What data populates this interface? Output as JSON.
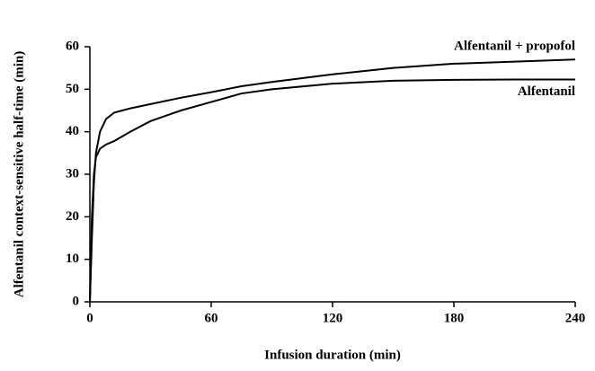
{
  "chart_data": {
    "type": "line",
    "x_label": "Infusion duration (min)",
    "y_label": "Alfentanil context-sensitive half-time (min)",
    "x": [
      0,
      1,
      2,
      3,
      5,
      8,
      12,
      20,
      30,
      45,
      60,
      75,
      90,
      120,
      150,
      180,
      210,
      240
    ],
    "series": [
      {
        "name": "Alfentanil + propofol",
        "color": "#000000",
        "values": [
          0,
          15,
          28,
          35,
          40,
          43,
          44.5,
          45.5,
          46.5,
          48,
          49.3,
          50.7,
          51.7,
          53.5,
          55,
          56,
          56.5,
          57
        ]
      },
      {
        "name": "Alfentanil",
        "color": "#000000",
        "values": [
          0,
          20,
          30,
          34,
          36,
          37,
          37.8,
          40,
          42.5,
          45,
          47,
          49,
          50,
          51.3,
          52,
          52.2,
          52.3,
          52.3
        ]
      }
    ],
    "xlim": [
      0,
      240
    ],
    "xticks": [
      0,
      60,
      120,
      180,
      240
    ],
    "ylim": [
      0,
      60
    ],
    "yticks": [
      0,
      10,
      20,
      30,
      40,
      50,
      60
    ]
  }
}
